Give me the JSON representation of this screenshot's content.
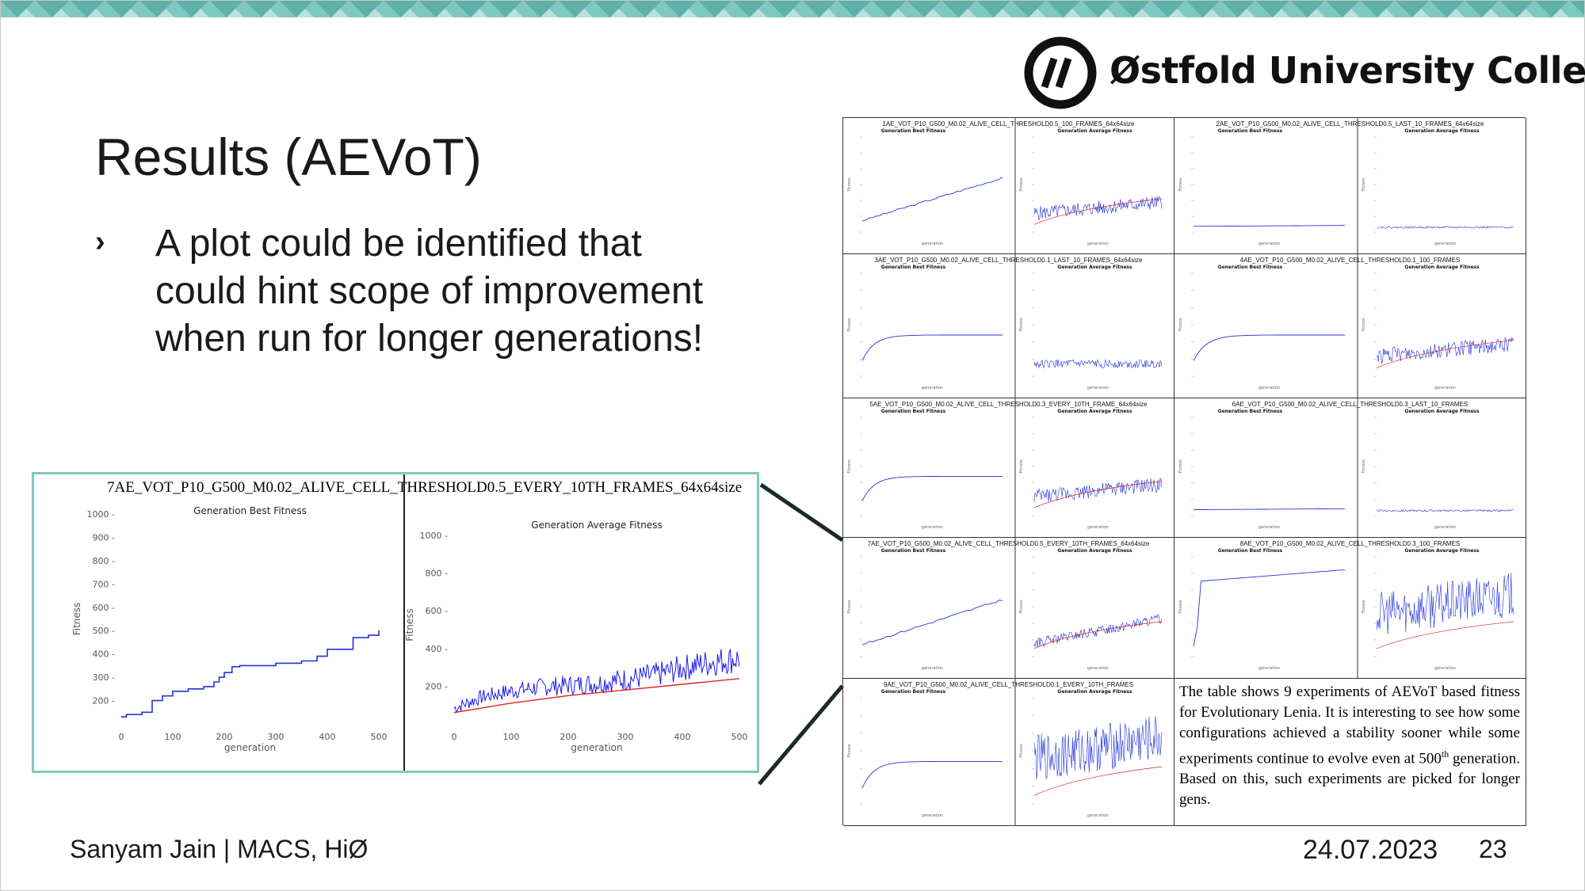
{
  "slide": {
    "title": "Results (AEVoT)",
    "bullet": "A plot could be identified that could hint scope of improvement when run for longer generations!",
    "logo_text": "Østfold University College",
    "logo_mark": "logo-hi-mark",
    "footer_author": "Sanyam Jain | MACS, HiØ",
    "footer_date": "24.07.2023",
    "footer_page": "23",
    "colors": {
      "accent": "#7fc8bf",
      "banner": "#7fc8bf",
      "best_line": "#2233dd",
      "avg_line": "#1a1aee",
      "trend_line": "#e02020"
    }
  },
  "zoom": {
    "title": "7AE_VOT_P10_G500_M0.02_ALIVE_CELL_THRESHOLD0.5_EVERY_10TH_FRAMES_64x64size",
    "left_plot": {
      "title": "Generation Best Fitness",
      "xlabel": "generation",
      "ylabel": "Fitness",
      "yticks": [
        "1000",
        "900",
        "800",
        "700",
        "600",
        "500",
        "400",
        "300",
        "200"
      ],
      "xticks": [
        "0",
        "100",
        "200",
        "300",
        "400",
        "500"
      ]
    },
    "right_plot": {
      "title": "Generation Average Fitness",
      "xlabel": "generation",
      "ylabel": "Fitness",
      "yticks": [
        "1000",
        "800",
        "600",
        "400",
        "200"
      ],
      "xticks": [
        "0",
        "100",
        "200",
        "300",
        "400",
        "500"
      ]
    }
  },
  "chart_data": [
    {
      "type": "line",
      "title": "Generation Best Fitness",
      "xlabel": "generation",
      "ylabel": "Fitness",
      "xlim": [
        0,
        500
      ],
      "ylim": [
        100,
        1000
      ],
      "series": [
        {
          "x": [
            0,
            10,
            40,
            60,
            80,
            100,
            130,
            160,
            170,
            180,
            190,
            200,
            215,
            230,
            260,
            300,
            350,
            380,
            400,
            450,
            480,
            500
          ],
          "values": [
            130,
            140,
            150,
            200,
            220,
            240,
            250,
            260,
            260,
            280,
            300,
            320,
            345,
            350,
            350,
            360,
            370,
            390,
            420,
            470,
            480,
            500
          ]
        }
      ]
    },
    {
      "type": "line",
      "title": "Generation Average Fitness",
      "xlabel": "generation",
      "ylabel": "Fitness",
      "xlim": [
        0,
        500
      ],
      "ylim": [
        0,
        1050
      ],
      "series": [
        {
          "x": [
            0,
            50,
            100,
            150,
            200,
            250,
            300,
            350,
            400,
            450,
            500
          ],
          "values": [
            80,
            140,
            170,
            190,
            200,
            210,
            230,
            250,
            290,
            320,
            340
          ]
        },
        {
          "x": [
            0,
            100,
            200,
            300,
            400,
            500
          ],
          "values": [
            60,
            110,
            150,
            180,
            210,
            240
          ]
        }
      ]
    }
  ],
  "grid": {
    "cells": [
      {
        "title": "1AE_VOT_P10_G500_M0.02_ALIVE_CELL_THRESHOLD0.5_100_FRAMES_64x64size",
        "best": "steady",
        "avg": "noisy"
      },
      {
        "title": "2AE_VOT_P10_G500_M0.02_ALIVE_CELL_THRESHOLD0.5_LAST_10_FRAMES_64x64size",
        "best": "flat",
        "avg": "flat"
      },
      {
        "title": "3AE_VOT_P10_G500_M0.02_ALIVE_CELL_THRESHOLD0.1_LAST_10_FRAMES_64x64size",
        "best": "plateau",
        "avg": "lownoisy"
      },
      {
        "title": "4AE_VOT_P10_G500_M0.02_ALIVE_CELL_THRESHOLD0.1_100_FRAMES",
        "best": "plateau",
        "avg": "noisy"
      },
      {
        "title": "5AE_VOT_P10_G500_M0.02_ALIVE_CELL_THRESHOLD0.3_EVERY_10TH_FRAME_64x64size",
        "best": "plateau",
        "avg": "noisy"
      },
      {
        "title": "6AE_VOT_P10_G500_M0.02_ALIVE_CELL_THRESHOLD0.3_LAST_10_FRAMES",
        "best": "flat",
        "avg": "flat"
      },
      {
        "title": "7AE_VOT_P10_G500_M0.02_ALIVE_CELL_THRESHOLD0.5_EVERY_10TH_FRAMES_64x64size",
        "best": "steady",
        "avg": "rising"
      },
      {
        "title": "8AE_VOT_P10_G500_M0.02_ALIVE_CELL_THRESHOLD0.3_100_FRAMES",
        "best": "jump",
        "avg": "bignoisy"
      },
      {
        "title": "9AE_VOT_P10_G500_M0.02_ALIVE_CELL_THRESHOLD0.1_EVERY_10TH_FRAMES",
        "best": "plateau",
        "avg": "bignoisy"
      }
    ],
    "mini_best_title": "Generation Best Fitness",
    "mini_avg_title": "Generation Average Fitness",
    "mini_xlabel": "generation",
    "mini_ylabel": "Fitness",
    "description": "The table shows 9 experiments of AEVoT based fitness for Evolutionary Lenia. It is interesting to see how some configurations achieved a stability sooner while some experiments continue to evolve even at 500",
    "description_sup": "th",
    "description_tail": " generation. Based on this, such experiments are picked for longer gens."
  }
}
